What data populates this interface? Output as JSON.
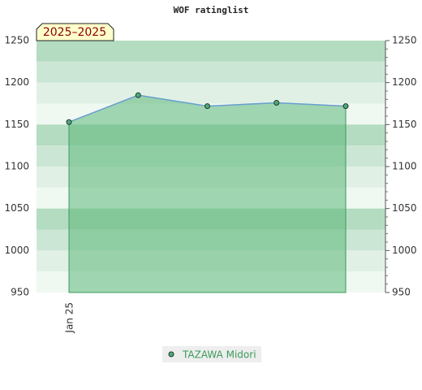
{
  "chart_data": {
    "type": "line",
    "title": "WOF ratinglist",
    "annotation": "2025–2025",
    "categories": [
      "Jan 25",
      null,
      null,
      null,
      null
    ],
    "series": [
      {
        "name": "TAZAWA Midori",
        "color": "#3a9a5b",
        "line_color": "#6a9fd0",
        "values": [
          1153,
          1185,
          1172,
          1176,
          1172
        ]
      }
    ],
    "ylim": [
      950,
      1250
    ],
    "yticks": [
      950,
      1000,
      1050,
      1100,
      1150,
      1200,
      1250
    ],
    "fill_area": true
  }
}
